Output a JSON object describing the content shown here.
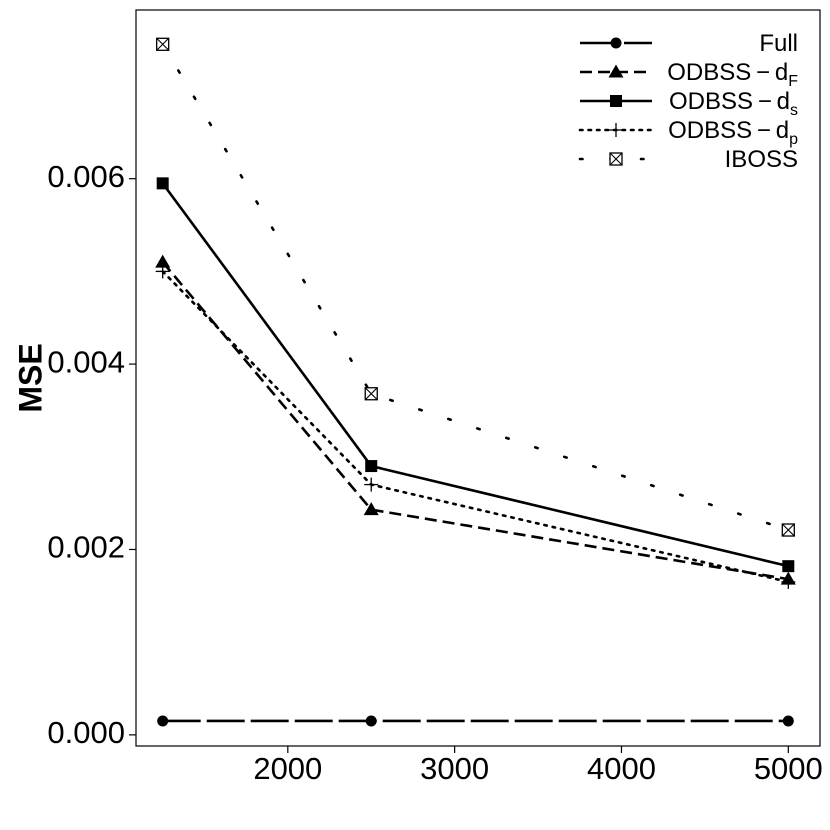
{
  "chart_data": {
    "type": "line",
    "title": "",
    "xlabel": "",
    "ylabel": "MSE",
    "x": [
      1250,
      2500,
      5000
    ],
    "xlim": [
      1090,
      5190
    ],
    "ylim": [
      -0.00012,
      0.00782
    ],
    "xticks": [
      2000,
      3000,
      4000,
      5000
    ],
    "xtick_labels": [
      "2000",
      "3000",
      "4000",
      "5000"
    ],
    "yticks": [
      0.0,
      0.002,
      0.004,
      0.006
    ],
    "ytick_labels": [
      "0.000",
      "0.002",
      "0.004",
      "0.006"
    ],
    "grid": false,
    "legend_position": "top-right",
    "series": [
      {
        "name": "Full",
        "label_main": "Full",
        "label_sub": "",
        "values": [
          0.00015,
          0.00015,
          0.00015
        ],
        "line": "longdash",
        "marker": "circle"
      },
      {
        "name": "ODBSS-dF",
        "label_main": "ODBSS − d",
        "label_sub": "F",
        "values": [
          0.0051,
          0.00243,
          0.00168
        ],
        "line": "dashed",
        "marker": "triangle"
      },
      {
        "name": "ODBSS-ds",
        "label_main": "ODBSS − d",
        "label_sub": "s",
        "values": [
          0.00595,
          0.0029,
          0.00182
        ],
        "line": "solid",
        "marker": "square"
      },
      {
        "name": "ODBSS-dp",
        "label_main": "ODBSS − d",
        "label_sub": "p",
        "values": [
          0.005,
          0.0027,
          0.00165
        ],
        "line": "dotted",
        "marker": "plus"
      },
      {
        "name": "IBOSS",
        "label_main": "IBOSS",
        "label_sub": "",
        "values": [
          0.00745,
          0.00368,
          0.00221
        ],
        "line": "sparse-dotted",
        "marker": "boxed-x"
      }
    ]
  }
}
